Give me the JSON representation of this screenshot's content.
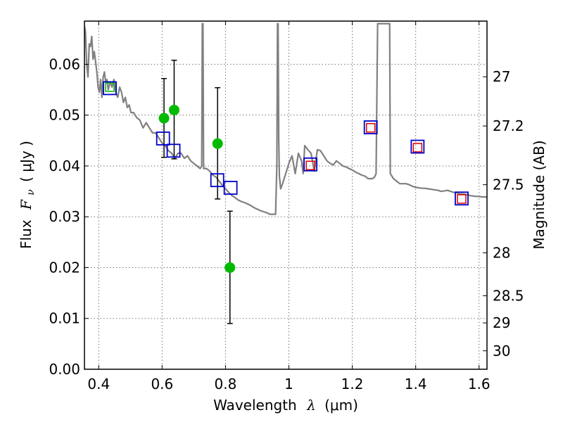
{
  "chart_data": {
    "type": "scatter",
    "title": "",
    "xlabel": "Wavelength",
    "xlabel_symbol": "λ",
    "xlabel_unit": "(μm)",
    "ylabel": "Flux",
    "ylabel_symbol": "F",
    "ylabel_subscript": "ν",
    "ylabel_unit": "( μJy )",
    "y2label": "Magnitude (AB)",
    "xlim": [
      0.355,
      1.625
    ],
    "ylim": [
      0.0,
      0.0685
    ],
    "grid": true,
    "x_ticks": [
      {
        "value": 0.4,
        "label": "0.4"
      },
      {
        "value": 0.6,
        "label": "0.6"
      },
      {
        "value": 0.8,
        "label": "0.8"
      },
      {
        "value": 1.0,
        "label": "1"
      },
      {
        "value": 1.2,
        "label": "1.2"
      },
      {
        "value": 1.4,
        "label": "1.4"
      },
      {
        "value": 1.6,
        "label": "1.6"
      }
    ],
    "y_ticks": [
      {
        "value": 0.0,
        "label": "0.00"
      },
      {
        "value": 0.01,
        "label": "0.01"
      },
      {
        "value": 0.02,
        "label": "0.02"
      },
      {
        "value": 0.03,
        "label": "0.03"
      },
      {
        "value": 0.04,
        "label": "0.04"
      },
      {
        "value": 0.05,
        "label": "0.05"
      },
      {
        "value": 0.06,
        "label": "0.06"
      }
    ],
    "mag_ticks": [
      {
        "value": 27.0,
        "label": "27"
      },
      {
        "value": 27.2,
        "label": "27.2"
      },
      {
        "value": 27.5,
        "label": "27.5"
      },
      {
        "value": 28.0,
        "label": "28"
      },
      {
        "value": 28.5,
        "label": "28.5"
      },
      {
        "value": 29.0,
        "label": "29"
      },
      {
        "value": 30.0,
        "label": "30"
      }
    ],
    "model_spectrum": {
      "color": "#808080",
      "points": [
        [
          0.355,
          0.0675
        ],
        [
          0.358,
          0.0665
        ],
        [
          0.362,
          0.06
        ],
        [
          0.366,
          0.0575
        ],
        [
          0.37,
          0.064
        ],
        [
          0.374,
          0.0635
        ],
        [
          0.378,
          0.0655
        ],
        [
          0.382,
          0.061
        ],
        [
          0.386,
          0.0625
        ],
        [
          0.39,
          0.0605
        ],
        [
          0.394,
          0.0585
        ],
        [
          0.398,
          0.0555
        ],
        [
          0.402,
          0.0545
        ],
        [
          0.406,
          0.057
        ],
        [
          0.41,
          0.0535
        ],
        [
          0.414,
          0.0575
        ],
        [
          0.418,
          0.0585
        ],
        [
          0.422,
          0.0565
        ],
        [
          0.426,
          0.057
        ],
        [
          0.43,
          0.055
        ],
        [
          0.436,
          0.0565
        ],
        [
          0.442,
          0.0555
        ],
        [
          0.448,
          0.057
        ],
        [
          0.454,
          0.0545
        ],
        [
          0.46,
          0.0535
        ],
        [
          0.466,
          0.0555
        ],
        [
          0.472,
          0.0545
        ],
        [
          0.478,
          0.0525
        ],
        [
          0.484,
          0.0535
        ],
        [
          0.49,
          0.0515
        ],
        [
          0.496,
          0.052
        ],
        [
          0.502,
          0.0505
        ],
        [
          0.51,
          0.0505
        ],
        [
          0.52,
          0.0495
        ],
        [
          0.53,
          0.049
        ],
        [
          0.54,
          0.0475
        ],
        [
          0.55,
          0.0485
        ],
        [
          0.56,
          0.0475
        ],
        [
          0.57,
          0.0465
        ],
        [
          0.58,
          0.0465
        ],
        [
          0.59,
          0.0455
        ],
        [
          0.6,
          0.0445
        ],
        [
          0.61,
          0.044
        ],
        [
          0.62,
          0.043
        ],
        [
          0.63,
          0.0425
        ],
        [
          0.64,
          0.0415
        ],
        [
          0.65,
          0.0425
        ],
        [
          0.66,
          0.0425
        ],
        [
          0.67,
          0.0415
        ],
        [
          0.68,
          0.042
        ],
        [
          0.69,
          0.041
        ],
        [
          0.7,
          0.0405
        ],
        [
          0.71,
          0.04
        ],
        [
          0.72,
          0.0395
        ],
        [
          0.725,
          0.04
        ],
        [
          0.727,
          0.068
        ],
        [
          0.729,
          0.068
        ],
        [
          0.731,
          0.0395
        ],
        [
          0.74,
          0.0395
        ],
        [
          0.75,
          0.039
        ],
        [
          0.76,
          0.0382
        ],
        [
          0.77,
          0.0378
        ],
        [
          0.78,
          0.037
        ],
        [
          0.79,
          0.0362
        ],
        [
          0.8,
          0.0355
        ],
        [
          0.81,
          0.0348
        ],
        [
          0.82,
          0.0342
        ],
        [
          0.83,
          0.0338
        ],
        [
          0.84,
          0.0333
        ],
        [
          0.85,
          0.033
        ],
        [
          0.86,
          0.0328
        ],
        [
          0.87,
          0.0325
        ],
        [
          0.88,
          0.0322
        ],
        [
          0.89,
          0.0318
        ],
        [
          0.9,
          0.0315
        ],
        [
          0.91,
          0.0312
        ],
        [
          0.92,
          0.031
        ],
        [
          0.93,
          0.0308
        ],
        [
          0.94,
          0.0305
        ],
        [
          0.95,
          0.0305
        ],
        [
          0.958,
          0.0305
        ],
        [
          0.962,
          0.04
        ],
        [
          0.964,
          0.068
        ],
        [
          0.966,
          0.068
        ],
        [
          0.968,
          0.045
        ],
        [
          0.97,
          0.038
        ],
        [
          0.974,
          0.0355
        ],
        [
          0.98,
          0.0365
        ],
        [
          0.99,
          0.0385
        ],
        [
          1.0,
          0.0405
        ],
        [
          1.01,
          0.042
        ],
        [
          1.02,
          0.0385
        ],
        [
          1.03,
          0.0425
        ],
        [
          1.04,
          0.041
        ],
        [
          1.045,
          0.0385
        ],
        [
          1.05,
          0.044
        ],
        [
          1.06,
          0.0432
        ],
        [
          1.07,
          0.0425
        ],
        [
          1.08,
          0.039
        ],
        [
          1.09,
          0.0432
        ],
        [
          1.1,
          0.043
        ],
        [
          1.11,
          0.042
        ],
        [
          1.12,
          0.041
        ],
        [
          1.13,
          0.0405
        ],
        [
          1.14,
          0.0402
        ],
        [
          1.15,
          0.041
        ],
        [
          1.16,
          0.0405
        ],
        [
          1.17,
          0.04
        ],
        [
          1.18,
          0.0398
        ],
        [
          1.19,
          0.0395
        ],
        [
          1.2,
          0.0392
        ],
        [
          1.21,
          0.0388
        ],
        [
          1.22,
          0.0385
        ],
        [
          1.23,
          0.0382
        ],
        [
          1.24,
          0.038
        ],
        [
          1.25,
          0.0375
        ],
        [
          1.258,
          0.0375
        ],
        [
          1.264,
          0.0375
        ],
        [
          1.27,
          0.0378
        ],
        [
          1.275,
          0.0385
        ],
        [
          1.28,
          0.068
        ],
        [
          1.318,
          0.068
        ],
        [
          1.32,
          0.0385
        ],
        [
          1.33,
          0.0375
        ],
        [
          1.34,
          0.037
        ],
        [
          1.35,
          0.0365
        ],
        [
          1.36,
          0.0365
        ],
        [
          1.37,
          0.0365
        ],
        [
          1.38,
          0.0363
        ],
        [
          1.39,
          0.036
        ],
        [
          1.4,
          0.0358
        ],
        [
          1.41,
          0.0357
        ],
        [
          1.42,
          0.0356
        ],
        [
          1.43,
          0.0356
        ],
        [
          1.44,
          0.0355
        ],
        [
          1.45,
          0.0354
        ],
        [
          1.46,
          0.0353
        ],
        [
          1.47,
          0.0352
        ],
        [
          1.48,
          0.035
        ],
        [
          1.49,
          0.0351
        ],
        [
          1.5,
          0.0352
        ],
        [
          1.51,
          0.035
        ],
        [
          1.52,
          0.0348
        ],
        [
          1.53,
          0.0347
        ],
        [
          1.54,
          0.0345
        ],
        [
          1.55,
          0.0345
        ],
        [
          1.56,
          0.0344
        ],
        [
          1.57,
          0.0342
        ],
        [
          1.58,
          0.0341
        ],
        [
          1.59,
          0.034
        ],
        [
          1.6,
          0.034
        ],
        [
          1.61,
          0.0339
        ],
        [
          1.62,
          0.0339
        ],
        [
          1.625,
          0.0339
        ]
      ]
    },
    "observed": {
      "color": "#00bb00",
      "points": [
        {
          "x": 0.435,
          "y": 0.0555
        },
        {
          "x": 0.606,
          "y": 0.0494,
          "err": [
            0.0417,
            0.0572
          ]
        },
        {
          "x": 0.638,
          "y": 0.051,
          "err": [
            0.0414,
            0.0608
          ]
        },
        {
          "x": 0.775,
          "y": 0.0444,
          "err": [
            0.0335,
            0.0554
          ]
        },
        {
          "x": 0.814,
          "y": 0.02,
          "err": [
            0.009,
            0.0311
          ]
        }
      ]
    },
    "synthetic_blue": {
      "color": "#0000cc",
      "points": [
        {
          "x": 0.435,
          "y": 0.0553
        },
        {
          "x": 0.603,
          "y": 0.0454
        },
        {
          "x": 0.636,
          "y": 0.043
        },
        {
          "x": 0.774,
          "y": 0.0372
        },
        {
          "x": 0.816,
          "y": 0.0357
        },
        {
          "x": 1.068,
          "y": 0.0403
        },
        {
          "x": 1.258,
          "y": 0.0476
        },
        {
          "x": 1.406,
          "y": 0.0438
        },
        {
          "x": 1.545,
          "y": 0.0336
        }
      ]
    },
    "synthetic_red": {
      "color": "#dd0000",
      "points": [
        {
          "x": 1.068,
          "y": 0.0401
        },
        {
          "x": 1.258,
          "y": 0.0475
        },
        {
          "x": 1.406,
          "y": 0.0436
        },
        {
          "x": 1.545,
          "y": 0.0335
        }
      ]
    },
    "inner_green": {
      "color": "#00bb00",
      "points": [
        {
          "x": 0.435,
          "y": 0.0555
        }
      ]
    }
  }
}
